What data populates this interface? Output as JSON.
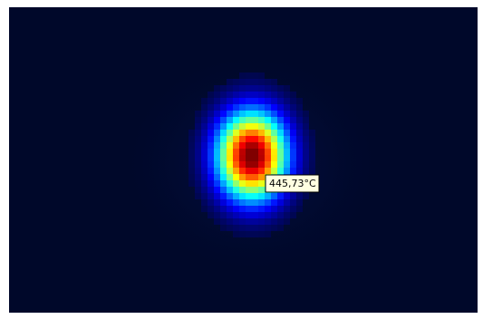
{
  "tooltip": {
    "text": "445,73°C"
  }
}
